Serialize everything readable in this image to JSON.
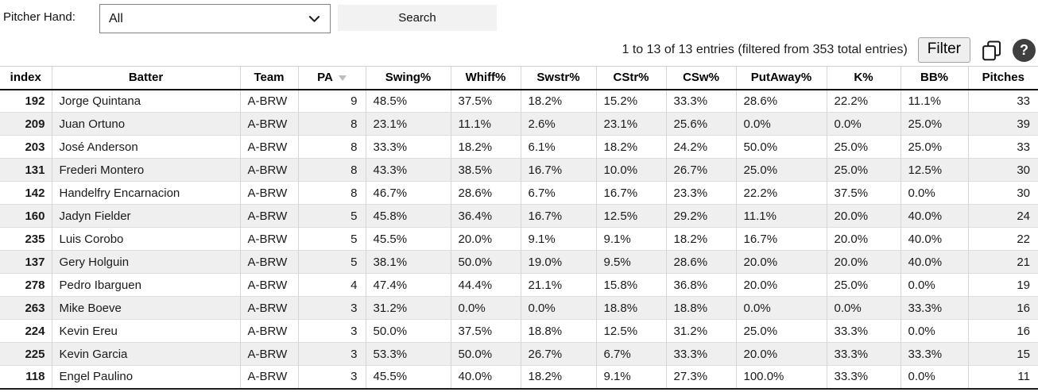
{
  "filters": {
    "pitcher_hand_label": "Pitcher Hand:",
    "pitcher_hand_value": "All",
    "search_button_label": "Search"
  },
  "toolbar": {
    "entries_summary": "1 to 13 of 13 entries (filtered from 353 total entries)",
    "filter_button_label": "Filter",
    "help_icon_label": "?"
  },
  "table": {
    "columns": [
      "index",
      "Batter",
      "Team",
      "PA",
      "Swing%",
      "Whiff%",
      "Swstr%",
      "CStr%",
      "CSw%",
      "PutAway%",
      "K%",
      "BB%",
      "Pitches"
    ],
    "sort": {
      "column": "PA",
      "direction": "desc"
    },
    "rows": [
      [
        "192",
        "Jorge Quintana",
        "A-BRW",
        "9",
        "48.5%",
        "37.5%",
        "18.2%",
        "15.2%",
        "33.3%",
        "28.6%",
        "22.2%",
        "11.1%",
        "33"
      ],
      [
        "209",
        "Juan Ortuno",
        "A-BRW",
        "8",
        "23.1%",
        "11.1%",
        "2.6%",
        "23.1%",
        "25.6%",
        "0.0%",
        "0.0%",
        "25.0%",
        "39"
      ],
      [
        "203",
        "José Anderson",
        "A-BRW",
        "8",
        "33.3%",
        "18.2%",
        "6.1%",
        "18.2%",
        "24.2%",
        "50.0%",
        "25.0%",
        "25.0%",
        "33"
      ],
      [
        "131",
        "Frederi Montero",
        "A-BRW",
        "8",
        "43.3%",
        "38.5%",
        "16.7%",
        "10.0%",
        "26.7%",
        "25.0%",
        "25.0%",
        "12.5%",
        "30"
      ],
      [
        "142",
        "Handelfry Encarnacion",
        "A-BRW",
        "8",
        "46.7%",
        "28.6%",
        "6.7%",
        "16.7%",
        "23.3%",
        "22.2%",
        "37.5%",
        "0.0%",
        "30"
      ],
      [
        "160",
        "Jadyn Fielder",
        "A-BRW",
        "5",
        "45.8%",
        "36.4%",
        "16.7%",
        "12.5%",
        "29.2%",
        "11.1%",
        "20.0%",
        "40.0%",
        "24"
      ],
      [
        "235",
        "Luis Corobo",
        "A-BRW",
        "5",
        "45.5%",
        "20.0%",
        "9.1%",
        "9.1%",
        "18.2%",
        "16.7%",
        "20.0%",
        "40.0%",
        "22"
      ],
      [
        "137",
        "Gery Holguin",
        "A-BRW",
        "5",
        "38.1%",
        "50.0%",
        "19.0%",
        "9.5%",
        "28.6%",
        "20.0%",
        "20.0%",
        "40.0%",
        "21"
      ],
      [
        "278",
        "Pedro Ibarguen",
        "A-BRW",
        "4",
        "47.4%",
        "44.4%",
        "21.1%",
        "15.8%",
        "36.8%",
        "20.0%",
        "25.0%",
        "0.0%",
        "19"
      ],
      [
        "263",
        "Mike Boeve",
        "A-BRW",
        "3",
        "31.2%",
        "0.0%",
        "0.0%",
        "18.8%",
        "18.8%",
        "0.0%",
        "0.0%",
        "33.3%",
        "16"
      ],
      [
        "224",
        "Kevin Ereu",
        "A-BRW",
        "3",
        "50.0%",
        "37.5%",
        "18.8%",
        "12.5%",
        "31.2%",
        "25.0%",
        "33.3%",
        "0.0%",
        "16"
      ],
      [
        "225",
        "Kevin Garcia",
        "A-BRW",
        "3",
        "53.3%",
        "50.0%",
        "26.7%",
        "6.7%",
        "33.3%",
        "20.0%",
        "33.3%",
        "33.3%",
        "15"
      ],
      [
        "118",
        "Engel Paulino",
        "A-BRW",
        "3",
        "45.5%",
        "40.0%",
        "18.2%",
        "9.1%",
        "27.3%",
        "100.0%",
        "33.3%",
        "0.0%",
        "11"
      ]
    ]
  },
  "colors": {
    "stripe": "#efefef",
    "header_border": "#141414",
    "help_circle": "#3f3f3f"
  }
}
